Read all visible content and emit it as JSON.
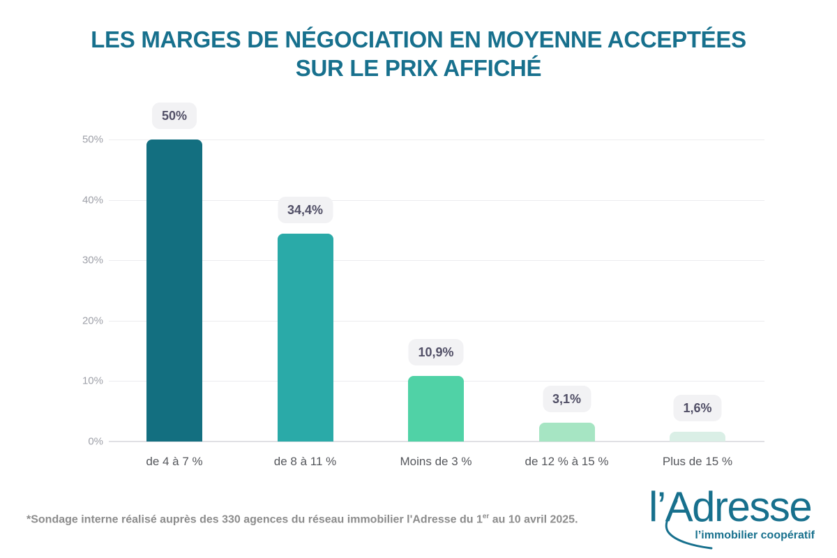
{
  "title": {
    "line1": "LES MARGES DE NÉGOCIATION EN MOYENNE ACCEPTÉES",
    "line2": "SUR LE PRIX AFFICHÉ"
  },
  "chart_data": {
    "type": "bar",
    "title": "LES MARGES DE NÉGOCIATION EN MOYENNE ACCEPTÉES SUR LE PRIX AFFICHÉ",
    "categories": [
      "de 4 à 7 %",
      "de 8 à 11 %",
      "Moins de 3 %",
      "de 12 % à 15 %",
      "Plus de 15 %"
    ],
    "values": [
      50,
      34.4,
      10.9,
      3.1,
      1.6
    ],
    "value_labels": [
      "50%",
      "34,4%",
      "10,9%",
      "3,1%",
      "1,6%"
    ],
    "bar_colors": [
      "#136F80",
      "#2AAAA8",
      "#50D2A6",
      "#A6E5C3",
      "#DAEFE6"
    ],
    "xlabel": "",
    "ylabel": "",
    "ylim": [
      0,
      50
    ],
    "y_tick_values": [
      0,
      10,
      20,
      30,
      40,
      50
    ],
    "y_tick_labels": [
      "0%",
      "10%",
      "20%",
      "30%",
      "40%",
      "50%"
    ],
    "grid": true,
    "legend": "none"
  },
  "footnote": {
    "prefix": "*Sondage interne réalisé auprès des 330 agences du réseau immobilier l'Adresse du 1",
    "superscript": "er",
    "suffix": " au 10 avril 2025."
  },
  "logo": {
    "wordmark": "l’Adresse",
    "tagline": "l’immobilier coopératif"
  },
  "colors": {
    "title": "#17708D",
    "logo": "#17708D",
    "badge_bg": "#F2F2F4",
    "badge_text": "#514F66",
    "grid": "#ECECEF",
    "baseline": "#E0E0E4",
    "y_label": "#9EA0A8",
    "x_label": "#54565B",
    "footnote": "#8C8C8C"
  }
}
